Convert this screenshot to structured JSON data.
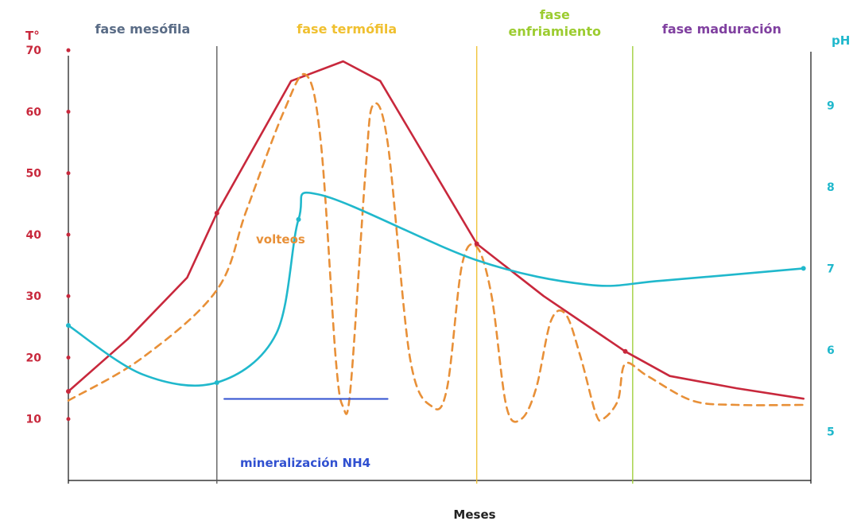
{
  "chart_data": {
    "type": "line",
    "title": "",
    "xlabel": "Meses",
    "ylabel_left": "T°",
    "ylabel_right": "pH",
    "y_left_ticks": [
      "70",
      "60",
      "50",
      "40",
      "30",
      "20",
      "10"
    ],
    "y_right_ticks": [
      "9",
      "8",
      "7",
      "6",
      "5"
    ],
    "phases": [
      {
        "label": "fase mesófila",
        "color": "#5a6c86"
      },
      {
        "label": "fase termófila",
        "color": "#f0c030"
      },
      {
        "label": "fase\nenfriamiento",
        "color": "#9ccc30"
      },
      {
        "label": "fase maduración",
        "color": "#8040a0"
      }
    ],
    "phase_dividers": [
      {
        "x": 1.0,
        "color": "#555555"
      },
      {
        "x": 2.75,
        "color": "#f0c030"
      },
      {
        "x": 3.8,
        "color": "#9ccc30"
      }
    ],
    "xlim": [
      0,
      5.0
    ],
    "ylim_left": [
      0,
      73
    ],
    "ylim_right": [
      4.4,
      9.9
    ],
    "series": [
      {
        "name": "temperatura",
        "color": "#c8283c",
        "style": "solid",
        "points": [
          [
            0,
            14.5
          ],
          [
            0.4,
            23
          ],
          [
            0.8,
            33
          ],
          [
            1.0,
            43.5
          ],
          [
            1.5,
            65
          ],
          [
            1.85,
            68.2
          ],
          [
            2.1,
            65
          ],
          [
            2.75,
            38.5
          ],
          [
            3.2,
            30
          ],
          [
            3.75,
            21
          ],
          [
            4.05,
            17
          ],
          [
            4.5,
            15
          ],
          [
            4.95,
            13.3
          ]
        ]
      },
      {
        "name": "volteos",
        "color": "#e89038",
        "style": "dashed",
        "points": [
          [
            0,
            13
          ],
          [
            0.5,
            20
          ],
          [
            1.0,
            31
          ],
          [
            1.2,
            44
          ],
          [
            1.45,
            60
          ],
          [
            1.6,
            66
          ],
          [
            1.7,
            55
          ],
          [
            1.8,
            20
          ],
          [
            1.85,
            12
          ],
          [
            1.9,
            15
          ],
          [
            2.0,
            50
          ],
          [
            2.05,
            61
          ],
          [
            2.15,
            55
          ],
          [
            2.3,
            20
          ],
          [
            2.45,
            12
          ],
          [
            2.55,
            15
          ],
          [
            2.65,
            35
          ],
          [
            2.75,
            38
          ],
          [
            2.85,
            30
          ],
          [
            2.95,
            12
          ],
          [
            3.05,
            10
          ],
          [
            3.15,
            15
          ],
          [
            3.25,
            26
          ],
          [
            3.35,
            27
          ],
          [
            3.45,
            20
          ],
          [
            3.55,
            11
          ],
          [
            3.6,
            10
          ],
          [
            3.7,
            13
          ],
          [
            3.75,
            19
          ],
          [
            3.9,
            17
          ],
          [
            4.2,
            13
          ],
          [
            4.5,
            12.3
          ],
          [
            4.95,
            12.3
          ]
        ]
      },
      {
        "name": "pH",
        "color": "#20b8cc",
        "style": "solid",
        "axis": "right",
        "points": [
          [
            0,
            6.3
          ],
          [
            0.5,
            5.7
          ],
          [
            1.0,
            5.6
          ],
          [
            1.4,
            6.2
          ],
          [
            1.55,
            7.6
          ],
          [
            1.7,
            7.9
          ],
          [
            2.75,
            7.1
          ],
          [
            3.5,
            6.8
          ],
          [
            4.0,
            6.85
          ],
          [
            4.95,
            7.0
          ]
        ]
      },
      {
        "name": "mineralización NH4",
        "color": "#3050d0",
        "style": "solid",
        "points": [
          [
            1.05,
            5.4
          ],
          [
            2.15,
            5.4
          ]
        ]
      }
    ],
    "annotations": [
      {
        "text": "volteos",
        "color": "#e89038"
      },
      {
        "text": "mineralización NH4",
        "color": "#3050d0"
      }
    ],
    "grid": false
  }
}
